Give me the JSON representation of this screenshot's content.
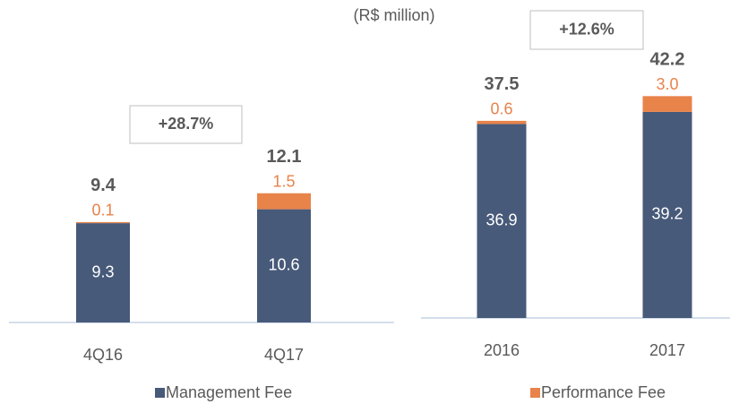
{
  "subtitle": "(R$ million)",
  "chart_data": [
    {
      "type": "stacked_bar",
      "annotation": "+28.7%",
      "categories": [
        "4Q16",
        "4Q17"
      ],
      "series": [
        {
          "name": "Management Fee",
          "color": "#475a7a",
          "values": [
            9.3,
            10.6
          ]
        },
        {
          "name": "Performance Fee",
          "color": "#e8834a",
          "values": [
            0.1,
            1.5
          ]
        }
      ],
      "totals": [
        9.4,
        12.1
      ],
      "ylim": [
        0,
        13
      ]
    },
    {
      "type": "stacked_bar",
      "annotation": "+12.6%",
      "categories": [
        "2016",
        "2017"
      ],
      "series": [
        {
          "name": "Management Fee",
          "color": "#475a7a",
          "values": [
            36.9,
            39.2
          ]
        },
        {
          "name": "Performance Fee",
          "color": "#e8834a",
          "values": [
            0.6,
            3
          ],
          "value_labels": [
            "0.6",
            "3.0"
          ]
        }
      ],
      "totals": [
        37.5,
        42.2
      ],
      "ylim": [
        0,
        46
      ]
    }
  ]
}
